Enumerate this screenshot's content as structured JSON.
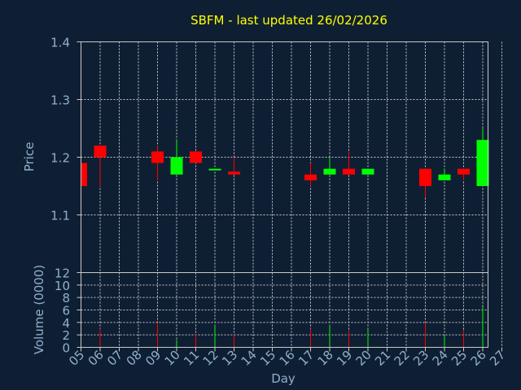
{
  "chart_data": [
    {
      "type": "candlestick",
      "title": "SBFM - last updated 26/02/2026",
      "ylabel": "Price",
      "ylim": [
        1.0,
        1.4
      ],
      "yticks": [
        "1.1",
        "1.2",
        "1.3",
        "1.4"
      ],
      "ytick_values": [
        1.1,
        1.2,
        1.3,
        1.4
      ],
      "grid": true,
      "x_days": [
        "05",
        "06",
        "07",
        "08",
        "09",
        "10",
        "11",
        "12",
        "13",
        "14",
        "15",
        "16",
        "17",
        "18",
        "19",
        "20",
        "21",
        "22",
        "23",
        "24",
        "25",
        "26",
        "27"
      ],
      "candles": [
        {
          "day": 5,
          "open": 1.19,
          "high": 1.19,
          "low": 1.15,
          "close": 1.15
        },
        {
          "day": 6,
          "open": 1.22,
          "high": 1.22,
          "low": 1.15,
          "close": 1.2
        },
        {
          "day": 9,
          "open": 1.21,
          "high": 1.22,
          "low": 1.16,
          "close": 1.19
        },
        {
          "day": 10,
          "open": 1.17,
          "high": 1.23,
          "low": 1.17,
          "close": 1.2
        },
        {
          "day": 11,
          "open": 1.21,
          "high": 1.21,
          "low": 1.19,
          "close": 1.19
        },
        {
          "day": 12,
          "open": 1.18,
          "high": 1.18,
          "low": 1.18,
          "close": 1.18
        },
        {
          "day": 13,
          "open": 1.175,
          "high": 1.2,
          "low": 1.17,
          "close": 1.17
        },
        {
          "day": 17,
          "open": 1.17,
          "high": 1.19,
          "low": 1.15,
          "close": 1.16
        },
        {
          "day": 18,
          "open": 1.17,
          "high": 1.2,
          "low": 1.17,
          "close": 1.18
        },
        {
          "day": 19,
          "open": 1.18,
          "high": 1.21,
          "low": 1.17,
          "close": 1.17
        },
        {
          "day": 20,
          "open": 1.17,
          "high": 1.18,
          "low": 1.17,
          "close": 1.18
        },
        {
          "day": 23,
          "open": 1.18,
          "high": 1.18,
          "low": 1.13,
          "close": 1.15
        },
        {
          "day": 24,
          "open": 1.16,
          "high": 1.18,
          "low": 1.16,
          "close": 1.17
        },
        {
          "day": 25,
          "open": 1.18,
          "high": 1.18,
          "low": 1.16,
          "close": 1.17
        },
        {
          "day": 26,
          "open": 1.15,
          "high": 1.25,
          "low": 1.15,
          "close": 1.23
        }
      ],
      "colors": {
        "up": "#00ff00",
        "down": "#ff0000",
        "grid": "#c8c8c8",
        "background": "#0f1f33",
        "title": "#ffff00",
        "axis_text": "#8fb0cc"
      }
    },
    {
      "type": "bar",
      "ylabel": "Volume (0000)",
      "xlabel": "Day",
      "ylim": [
        0,
        12
      ],
      "yticks": [
        "0",
        "2",
        "4",
        "6",
        "8",
        "10",
        "12"
      ],
      "ytick_values": [
        0,
        2,
        4,
        6,
        8,
        10,
        12
      ],
      "grid": true,
      "x_days": [
        "05",
        "06",
        "07",
        "08",
        "09",
        "10",
        "11",
        "12",
        "13",
        "14",
        "15",
        "16",
        "17",
        "18",
        "19",
        "20",
        "21",
        "22",
        "23",
        "24",
        "25",
        "26",
        "27"
      ],
      "bars": [
        {
          "day": 5,
          "value": 0.5,
          "direction": "down"
        },
        {
          "day": 6,
          "value": 3.0,
          "direction": "down"
        },
        {
          "day": 9,
          "value": 4.0,
          "direction": "down"
        },
        {
          "day": 10,
          "value": 1.2,
          "direction": "up"
        },
        {
          "day": 11,
          "value": 2.0,
          "direction": "down"
        },
        {
          "day": 12,
          "value": 3.6,
          "direction": "up"
        },
        {
          "day": 13,
          "value": 2.0,
          "direction": "down"
        },
        {
          "day": 17,
          "value": 3.0,
          "direction": "down"
        },
        {
          "day": 18,
          "value": 3.6,
          "direction": "up"
        },
        {
          "day": 19,
          "value": 2.8,
          "direction": "down"
        },
        {
          "day": 20,
          "value": 3.0,
          "direction": "up"
        },
        {
          "day": 23,
          "value": 4.0,
          "direction": "down"
        },
        {
          "day": 24,
          "value": 2.0,
          "direction": "up"
        },
        {
          "day": 25,
          "value": 2.8,
          "direction": "down"
        },
        {
          "day": 26,
          "value": 6.5,
          "direction": "up"
        }
      ]
    }
  ]
}
